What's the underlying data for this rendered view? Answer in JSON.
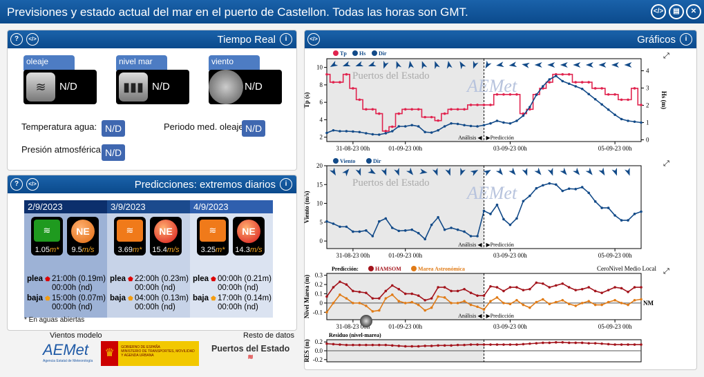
{
  "title": "Previsiones y estado actual del mar en el puerto de Castellon. Todas las horas son GMT.",
  "top_icons": [
    "code-icon",
    "print-icon",
    "close-icon"
  ],
  "realtime": {
    "title": "Tiempo Real",
    "tabs": [
      {
        "label": "oleaje",
        "value": "N/D"
      },
      {
        "label": "nivel mar",
        "value": "N/D"
      },
      {
        "label": "viento",
        "value": "N/D"
      }
    ],
    "fields": [
      {
        "label": "Temperatura agua:",
        "value": "N/D"
      },
      {
        "label": "Periodo med. oleaje:",
        "value": "N/D"
      },
      {
        "label": "Presión atmosférica:",
        "value": "N/D"
      }
    ]
  },
  "predictions": {
    "title": "Predicciones: extremos diarios",
    "footnote": "* En aguas abiertas",
    "plea": "plea",
    "baja": "baja",
    "days": [
      {
        "date": "2/9/2023",
        "wave": "1.05",
        "wave_unit": "m*",
        "wave_color": "#1f9a1f",
        "wind_dir": "NE",
        "wind": "9.5",
        "wind_unit": "m/s",
        "wind_color": "#e06a10",
        "plea": [
          "21:00h (0.19m)",
          "00:00h (nd)"
        ],
        "baja": [
          "15:00h (0.07m)",
          "00:00h (nd)"
        ]
      },
      {
        "date": "3/9/2023",
        "wave": "3.69",
        "wave_unit": "m*",
        "wave_color": "#f07a1a",
        "wind_dir": "NE",
        "wind": "15.4",
        "wind_unit": "m/s",
        "wind_color": "#d8141a",
        "plea": [
          "22:00h (0.23m)",
          "00:00h (nd)"
        ],
        "baja": [
          "04:00h (0.13m)",
          "00:00h (nd)"
        ]
      },
      {
        "date": "4/9/2023",
        "wave": "3.25",
        "wave_unit": "m*",
        "wave_color": "#f07a1a",
        "wind_dir": "NE",
        "wind": "14.3",
        "wind_unit": "m/s",
        "wind_color": "#d8141a",
        "plea": [
          "00:00h (0.21m)",
          "00:00h (nd)"
        ],
        "baja": [
          "17:00h (0.14m)",
          "00:00h (nd)"
        ]
      }
    ]
  },
  "footer": {
    "model_label": "Vientos modelo",
    "rest_label": "Resto de datos",
    "aemet": "AEMet",
    "aemet_sub": "Agencia Estatal de Meteorología",
    "gobierno": "GOBIERNO DE ESPAÑA",
    "ministerio": "MINISTERIO DE TRANSPORTES, MOVILIDAD Y AGENDA URBANA",
    "puertos": "Puertos del Estado"
  },
  "graphs": {
    "title": "Gráficos",
    "watermark": "Puertos del Estado",
    "watermark2": "AEMet",
    "analysis": "Análisis",
    "prediction": "Predicción"
  },
  "chart_data": [
    {
      "type": "line",
      "name": "waves",
      "legend": [
        "Tp",
        "Hs",
        "Dir"
      ],
      "ylabel": "Tp (s)",
      "y2label": "Hs (m)",
      "ylim": [
        1.5,
        11
      ],
      "y2lim": [
        -0.1,
        4.7
      ],
      "yticks": [
        2,
        4,
        6,
        8,
        10
      ],
      "y2ticks": [
        0,
        1,
        2,
        3,
        4
      ],
      "x_start": "30-08-23 12h",
      "x_step_hours": 3,
      "xticks": [
        "31-08-23 00h",
        "01-09-23 00h",
        "03-09-23 00h",
        "05-09-23 00h"
      ],
      "xtick_hours": [
        12,
        36,
        84,
        132
      ],
      "analysis_end_hour": 72,
      "series": [
        {
          "name": "Tp",
          "color": "#e0234e",
          "axis": "left",
          "step": true,
          "values": [
            9.2,
            8.3,
            8.3,
            9.2,
            7.6,
            6.3,
            5.2,
            5.2,
            4.7,
            2.7,
            3.2,
            4.7,
            5.2,
            5.2,
            5.2,
            4.3,
            4.3,
            3.9,
            4.7,
            5.2,
            5.2,
            5.2,
            5.7,
            5.7,
            5.7,
            5.7,
            6.9,
            6.9,
            6.9,
            6.9,
            4.7,
            5.2,
            6.9,
            7.6,
            8.3,
            9.2,
            9.2,
            9.2,
            8.3,
            8.3,
            8.3,
            7.6,
            7.6,
            6.9,
            6.9,
            6.3,
            6.3,
            7.6,
            5.7
          ]
        },
        {
          "name": "Hs",
          "color": "#124a88",
          "axis": "right",
          "values": [
            0.4,
            0.55,
            0.5,
            0.5,
            0.48,
            0.45,
            0.38,
            0.32,
            0.3,
            0.38,
            0.5,
            0.78,
            0.78,
            0.85,
            0.78,
            0.45,
            0.42,
            0.55,
            0.78,
            0.95,
            0.92,
            0.85,
            0.8,
            0.78,
            0.85,
            0.95,
            1.1,
            1.0,
            0.95,
            1.1,
            1.4,
            1.9,
            2.6,
            3.1,
            3.5,
            3.7,
            3.4,
            3.25,
            3.1,
            2.95,
            2.65,
            2.35,
            2.05,
            1.75,
            1.45,
            1.2,
            1.1,
            1.05,
            1.0
          ]
        }
      ],
      "dir_deg": [
        240,
        250,
        250,
        250,
        200,
        340,
        350,
        340,
        340,
        350,
        330,
        200,
        210,
        260,
        260,
        280,
        270,
        270,
        270,
        270,
        270,
        270,
        270,
        270
      ]
    },
    {
      "type": "line",
      "name": "wind",
      "legend": [
        "Viento",
        "Dir"
      ],
      "ylabel": "Viento (m/s)",
      "ylim": [
        -2,
        20
      ],
      "yticks": [
        0,
        5,
        10,
        15,
        20
      ],
      "series": [
        {
          "name": "Viento",
          "color": "#124a88",
          "values": [
            5.2,
            4.6,
            3.8,
            3.8,
            2.5,
            2.5,
            2.8,
            1.3,
            5.2,
            6.0,
            3.5,
            2.7,
            2.8,
            3.0,
            2.1,
            0.5,
            4.3,
            6.3,
            3.0,
            3.5,
            3.0,
            2.5,
            1.3,
            1.3,
            8.0,
            7.2,
            9.6,
            5.8,
            4.3,
            6.0,
            10.6,
            12.0,
            14.0,
            14.8,
            15.3,
            15.0,
            13.3,
            13.9,
            13.8,
            14.3,
            12.8,
            10.5,
            8.8,
            8.8,
            6.8,
            5.5,
            5.5,
            7.2,
            7.8
          ]
        }
      ],
      "dir_deg": [
        150,
        40,
        160,
        120,
        160,
        160,
        140,
        100,
        160,
        160,
        200,
        60,
        60,
        140,
        140,
        160,
        140,
        160,
        140,
        140,
        140,
        150,
        160,
        160
      ]
    },
    {
      "type": "line",
      "name": "tide",
      "legend_prefix": "Predicción:",
      "legend": [
        "HAMSOM",
        "Marea Astronómica"
      ],
      "note": "CeroNivel Medio Local",
      "zero_label": "NM",
      "ylabel": "Nivel Marea (m)",
      "ylim": [
        -0.18,
        0.32
      ],
      "yticks": [
        -0.1,
        0,
        0.1,
        0.2,
        0.3
      ],
      "series": [
        {
          "name": "HAMSOM",
          "color": "#a3141c",
          "values": [
            0.07,
            0.17,
            0.23,
            0.2,
            0.13,
            0.12,
            0.11,
            0.05,
            0.05,
            0.13,
            0.19,
            0.15,
            0.1,
            0.1,
            0.08,
            0.03,
            0.05,
            0.17,
            0.17,
            0.13,
            0.13,
            0.15,
            0.11,
            0.08,
            0.08,
            0.18,
            0.17,
            0.13,
            0.17,
            0.17,
            0.14,
            0.15,
            0.22,
            0.21,
            0.17,
            0.19,
            0.21,
            0.17,
            0.14,
            0.15,
            0.17,
            0.13,
            0.11,
            0.14,
            0.17,
            0.16,
            0.12,
            0.17,
            0.17
          ]
        },
        {
          "name": "Marea Astronómica",
          "color": "#e07b16",
          "values": [
            -0.1,
            0.0,
            0.09,
            0.05,
            0.0,
            0.0,
            -0.03,
            -0.09,
            -0.08,
            0.05,
            0.09,
            0.02,
            0.0,
            0.01,
            -0.02,
            -0.08,
            -0.05,
            0.07,
            0.06,
            0.0,
            0.0,
            0.02,
            -0.02,
            -0.04,
            -0.07,
            0.02,
            0.06,
            0.0,
            -0.01,
            0.03,
            -0.02,
            -0.05,
            0.01,
            0.04,
            -0.01,
            0.01,
            0.03,
            -0.01,
            -0.03,
            0.0,
            0.02,
            -0.02,
            -0.02,
            0.01,
            0.03,
            0.0,
            -0.02,
            0.03,
            0.04
          ]
        }
      ]
    },
    {
      "type": "line",
      "name": "residual",
      "title": "Residuo (nivel-marea)",
      "ylabel": "RES (m)",
      "ylim": [
        -0.25,
        0.25
      ],
      "yticks": [
        "-0.2",
        "0.0",
        "0.2"
      ],
      "series": [
        {
          "name": "Residuo",
          "color": "#a3141c",
          "values": [
            0.16,
            0.15,
            0.14,
            0.13,
            0.13,
            0.13,
            0.13,
            0.13,
            0.13,
            0.13,
            0.12,
            0.11,
            0.1,
            0.1,
            0.1,
            0.11,
            0.11,
            0.12,
            0.12,
            0.12,
            0.13,
            0.13,
            0.14,
            0.14,
            0.14,
            0.14,
            0.14,
            0.14,
            0.14,
            0.14,
            0.15,
            0.16,
            0.17,
            0.18,
            0.18,
            0.19,
            0.19,
            0.18,
            0.18,
            0.18,
            0.17,
            0.17,
            0.16,
            0.15,
            0.14,
            0.14,
            0.14,
            0.14,
            0.14
          ]
        }
      ]
    }
  ]
}
